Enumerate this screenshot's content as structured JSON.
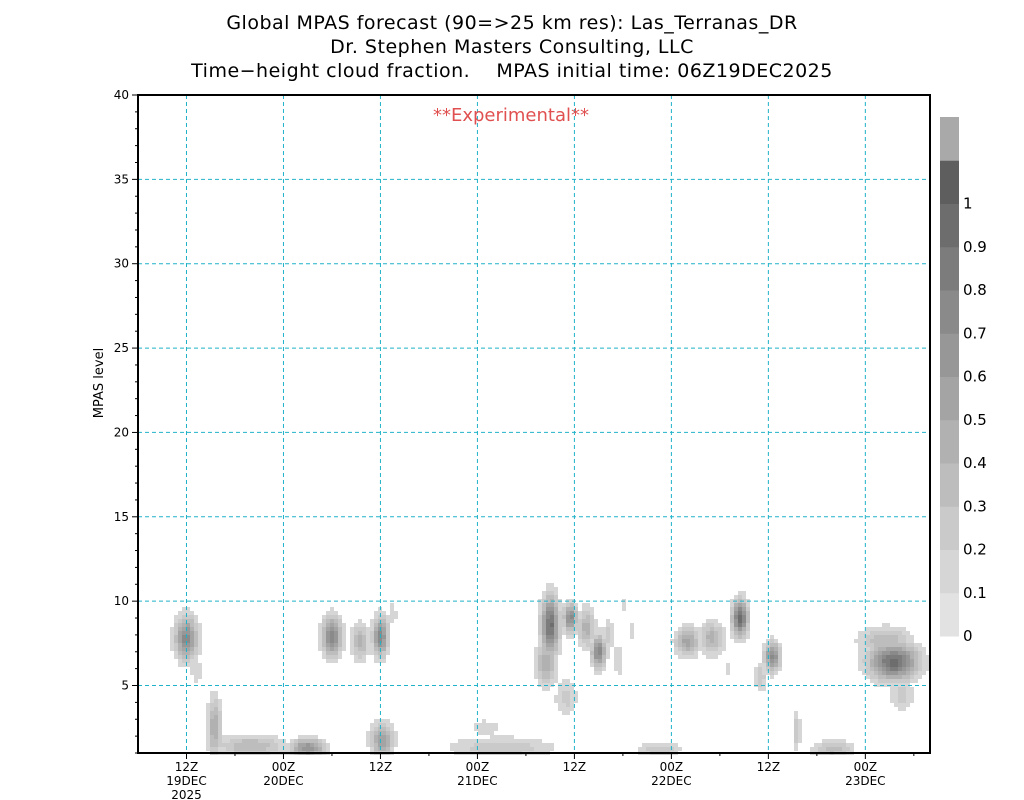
{
  "title_lines": [
    "Global MPAS forecast (90=>25 km res): Las_Terranas_DR",
    "Dr. Stephen Masters Consulting, LLC",
    "Time−height cloud fraction.    MPAS initial time: 06Z19DEC2025"
  ],
  "annotation": "**Experimental**",
  "colors": {
    "grid": "#20b2c8",
    "annotation": "#e05050",
    "frame": "#000000"
  },
  "chart_data": {
    "type": "heatmap",
    "ylabel": "MPAS level",
    "xlabel": "",
    "ylim": [
      1,
      40
    ],
    "xlim_hours": [
      0,
      98
    ],
    "yticks": [
      5,
      10,
      15,
      20,
      25,
      30,
      35,
      40
    ],
    "grid": true,
    "legend": "right",
    "xticks": [
      {
        "hours": 6,
        "label": "12Z",
        "sub1": "19DEC",
        "sub2": "2025"
      },
      {
        "hours": 18,
        "label": "00Z",
        "sub1": "20DEC",
        "sub2": ""
      },
      {
        "hours": 30,
        "label": "12Z",
        "sub1": "",
        "sub2": ""
      },
      {
        "hours": 42,
        "label": "00Z",
        "sub1": "21DEC",
        "sub2": ""
      },
      {
        "hours": 54,
        "label": "12Z",
        "sub1": "",
        "sub2": ""
      },
      {
        "hours": 66,
        "label": "00Z",
        "sub1": "22DEC",
        "sub2": ""
      },
      {
        "hours": 78,
        "label": "12Z",
        "sub1": "",
        "sub2": ""
      },
      {
        "hours": 90,
        "label": "00Z",
        "sub1": "23DEC",
        "sub2": ""
      }
    ],
    "colorbar": {
      "levels": [
        0,
        0.1,
        0.2,
        0.3,
        0.4,
        0.5,
        0.6,
        0.7,
        0.8,
        0.9,
        1
      ],
      "labels": [
        "0",
        "0.1",
        "0.2",
        "0.3",
        "0.4",
        "0.5",
        "0.6",
        "0.7",
        "0.8",
        "0.9",
        "1"
      ],
      "colors": [
        "#e2e2e2",
        "#d6d6d6",
        "#cacaca",
        "#bdbdbd",
        "#b1b1b1",
        "#a4a4a4",
        "#979797",
        "#8a8a8a",
        "#7c7c7c",
        "#6d6d6d",
        "#5e5e5e",
        "#a9a9a9"
      ]
    },
    "cloud_blobs": [
      {
        "t": 6.0,
        "lev": 7.8,
        "peak": 0.75,
        "ht": 1.3,
        "hl": 1.2
      },
      {
        "t": 7.2,
        "lev": 5.9,
        "peak": 0.2,
        "ht": 0.7,
        "hl": 0.8
      },
      {
        "t": 9.5,
        "lev": 2.5,
        "peak": 0.5,
        "ht": 0.8,
        "hl": 1.7
      },
      {
        "t": 14.0,
        "lev": 1.4,
        "peak": 0.4,
        "ht": 4.0,
        "hl": 0.6
      },
      {
        "t": 21.0,
        "lev": 1.3,
        "peak": 0.7,
        "ht": 2.0,
        "hl": 0.5
      },
      {
        "t": 24.0,
        "lev": 7.9,
        "peak": 0.8,
        "ht": 1.1,
        "hl": 1.1
      },
      {
        "t": 27.5,
        "lev": 7.6,
        "peak": 0.45,
        "ht": 1.0,
        "hl": 1.0
      },
      {
        "t": 30.0,
        "lev": 7.9,
        "peak": 0.75,
        "ht": 0.9,
        "hl": 1.1
      },
      {
        "t": 31.5,
        "lev": 9.2,
        "peak": 0.2,
        "ht": 0.5,
        "hl": 0.7
      },
      {
        "t": 30.2,
        "lev": 1.8,
        "peak": 0.6,
        "ht": 1.3,
        "hl": 0.9
      },
      {
        "t": 45.0,
        "lev": 1.3,
        "peak": 0.3,
        "ht": 6.0,
        "hl": 0.6
      },
      {
        "t": 43.0,
        "lev": 2.5,
        "peak": 0.15,
        "ht": 2.5,
        "hl": 0.6
      },
      {
        "t": 51.0,
        "lev": 8.5,
        "peak": 0.95,
        "ht": 1.0,
        "hl": 1.6
      },
      {
        "t": 50.5,
        "lev": 6.3,
        "peak": 0.5,
        "ht": 1.2,
        "hl": 1.2
      },
      {
        "t": 53.0,
        "lev": 4.3,
        "peak": 0.25,
        "ht": 1.3,
        "hl": 1.0
      },
      {
        "t": 53.5,
        "lev": 9.0,
        "peak": 0.75,
        "ht": 0.8,
        "hl": 0.8
      },
      {
        "t": 55.5,
        "lev": 8.4,
        "peak": 0.45,
        "ht": 1.0,
        "hl": 1.1
      },
      {
        "t": 57.0,
        "lev": 7.0,
        "peak": 0.8,
        "ht": 0.8,
        "hl": 0.9
      },
      {
        "t": 58.2,
        "lev": 8.0,
        "peak": 0.25,
        "ht": 0.6,
        "hl": 0.9
      },
      {
        "t": 59.5,
        "lev": 6.5,
        "peak": 0.2,
        "ht": 0.7,
        "hl": 1.0
      },
      {
        "t": 61.2,
        "lev": 8.2,
        "peak": 0.2,
        "ht": 0.4,
        "hl": 0.6
      },
      {
        "t": 60.0,
        "lev": 9.8,
        "peak": 0.15,
        "ht": 0.5,
        "hl": 0.6
      },
      {
        "t": 64.5,
        "lev": 1.2,
        "peak": 0.3,
        "ht": 2.5,
        "hl": 0.4
      },
      {
        "t": 68.0,
        "lev": 7.6,
        "peak": 0.55,
        "ht": 1.4,
        "hl": 0.8
      },
      {
        "t": 71.0,
        "lev": 7.8,
        "peak": 0.45,
        "ht": 1.4,
        "hl": 0.9
      },
      {
        "t": 74.5,
        "lev": 9.0,
        "peak": 0.95,
        "ht": 0.9,
        "hl": 1.0
      },
      {
        "t": 73.0,
        "lev": 6.0,
        "peak": 0.2,
        "ht": 0.3,
        "hl": 0.5
      },
      {
        "t": 78.5,
        "lev": 6.7,
        "peak": 0.75,
        "ht": 0.9,
        "hl": 0.8
      },
      {
        "t": 77.0,
        "lev": 5.5,
        "peak": 0.3,
        "ht": 0.7,
        "hl": 0.8
      },
      {
        "t": 81.5,
        "lev": 2.3,
        "peak": 0.3,
        "ht": 0.5,
        "hl": 1.0
      },
      {
        "t": 86.0,
        "lev": 1.2,
        "peak": 0.35,
        "ht": 2.4,
        "hl": 0.5
      },
      {
        "t": 93.5,
        "lev": 6.4,
        "peak": 0.95,
        "ht": 2.8,
        "hl": 1.0
      },
      {
        "t": 92.5,
        "lev": 7.6,
        "peak": 0.4,
        "ht": 3.0,
        "hl": 0.8
      },
      {
        "t": 94.5,
        "lev": 4.4,
        "peak": 0.25,
        "ht": 1.4,
        "hl": 0.9
      }
    ]
  }
}
